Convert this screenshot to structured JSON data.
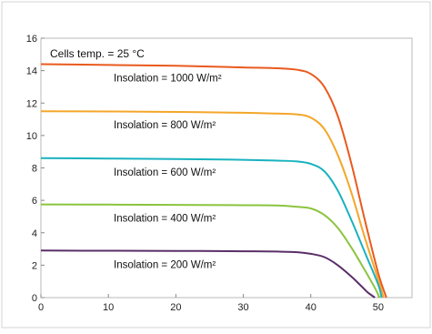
{
  "chart_data": {
    "type": "line",
    "title": "",
    "xlabel": "",
    "ylabel": "",
    "xlim": [
      0,
      55
    ],
    "ylim": [
      0,
      16
    ],
    "x_ticks": [
      0,
      10,
      20,
      30,
      40,
      50
    ],
    "y_ticks": [
      0,
      2,
      4,
      6,
      8,
      10,
      12,
      14,
      16
    ],
    "grid": false,
    "legend": "none",
    "annotations": [
      {
        "text": "Cells temp. = 25 °C"
      }
    ],
    "series": [
      {
        "name": "Insolation = 1000 W/m²",
        "color": "#e95a1e",
        "x": [
          0,
          10,
          20,
          30,
          35,
          38,
          40,
          42,
          44,
          46,
          48,
          50,
          51.2
        ],
        "y": [
          14.4,
          14.35,
          14.3,
          14.2,
          14.15,
          14.05,
          13.8,
          13.0,
          11.2,
          8.3,
          4.8,
          1.5,
          0
        ]
      },
      {
        "name": "Insolation = 800 W/m²",
        "color": "#f4a629",
        "x": [
          0,
          10,
          20,
          30,
          35,
          38,
          40,
          42,
          44,
          46,
          48,
          50,
          50.8
        ],
        "y": [
          11.5,
          11.48,
          11.45,
          11.4,
          11.35,
          11.3,
          11.1,
          10.4,
          8.8,
          6.5,
          3.7,
          1.1,
          0
        ]
      },
      {
        "name": "Insolation = 600 W/m²",
        "color": "#19b2bf",
        "x": [
          0,
          10,
          20,
          30,
          35,
          38,
          40,
          42,
          44,
          46,
          48,
          50,
          50.5
        ],
        "y": [
          8.6,
          8.58,
          8.55,
          8.5,
          8.45,
          8.4,
          8.25,
          7.8,
          6.6,
          4.8,
          2.8,
          0.8,
          0
        ]
      },
      {
        "name": "Insolation = 400 W/m²",
        "color": "#8bc43f",
        "x": [
          0,
          10,
          20,
          30,
          35,
          38,
          40,
          42,
          44,
          46,
          48,
          49.5,
          50.2
        ],
        "y": [
          5.75,
          5.74,
          5.72,
          5.7,
          5.68,
          5.6,
          5.5,
          5.1,
          4.3,
          3.1,
          1.7,
          0.6,
          0
        ]
      },
      {
        "name": "Insolation = 200 W/m²",
        "color": "#5a2e68",
        "x": [
          0,
          10,
          20,
          30,
          35,
          38,
          40,
          42,
          44,
          46,
          47.5,
          48.5,
          49.5
        ],
        "y": [
          2.9,
          2.89,
          2.88,
          2.86,
          2.84,
          2.8,
          2.7,
          2.5,
          2.0,
          1.3,
          0.7,
          0.3,
          0
        ]
      }
    ]
  }
}
